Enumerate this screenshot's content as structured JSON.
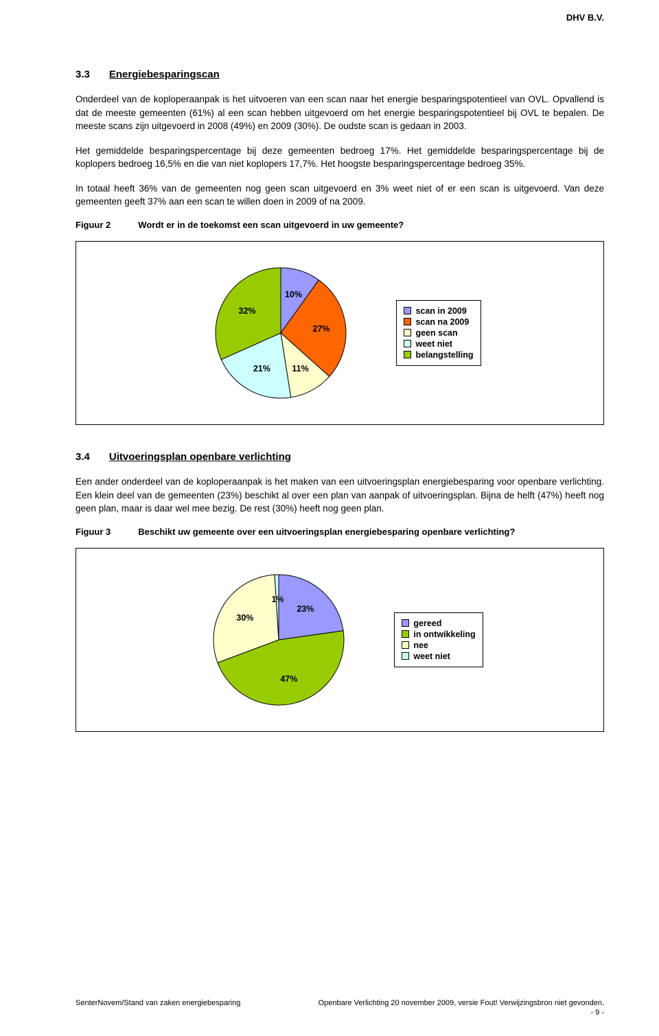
{
  "header": {
    "company": "DHV B.V."
  },
  "section33": {
    "num": "3.3",
    "title": "Energiebesparingscan",
    "p1": "Onderdeel van de koploperaanpak is het uitvoeren van een scan naar het energie besparingspotentieel van OVL. Opvallend is dat de meeste gemeenten (61%) al een scan hebben uitgevoerd om het energie besparingspotentieel bij OVL te bepalen. De meeste scans zijn uitgevoerd in 2008 (49%) en 2009 (30%). De oudste scan is gedaan in 2003.",
    "p2": "Het gemiddelde besparingspercentage bij deze gemeenten bedroeg 17%. Het gemiddelde besparingspercentage bij de koplopers bedroeg 16,5% en die van niet koplopers 17,7%. Het hoogste besparingspercentage bedroeg 35%.",
    "p3": "In totaal heeft 36% van de gemeenten nog geen scan uitgevoerd en 3% weet niet of er een scan is uitgevoerd. Van deze gemeenten geeft 37% aan een scan te willen doen in 2009 of na 2009."
  },
  "figure2": {
    "label": "Figuur 2",
    "caption": "Wordt er in de toekomst een scan uitgevoerd in uw gemeente?",
    "chart": {
      "type": "pie",
      "background_color": "#ffffff",
      "stroke": "#000000",
      "radius": 95,
      "slices": [
        {
          "label": "scan in 2009",
          "value": 10,
          "pct": "10%",
          "color": "#9999ff"
        },
        {
          "label": "scan na 2009",
          "value": 27,
          "pct": "27%",
          "color": "#ff6600"
        },
        {
          "label": "geen scan",
          "value": 11,
          "pct": "11%",
          "color": "#ffffcc"
        },
        {
          "label": "weet niet",
          "value": 21,
          "pct": "21%",
          "color": "#ccffff"
        },
        {
          "label": "belangstelling",
          "value": 32,
          "pct": "32%",
          "color": "#99cc00"
        }
      ],
      "legend": [
        "scan in 2009",
        "scan na 2009",
        "geen scan",
        "weet niet",
        "belangstelling"
      ]
    }
  },
  "section34": {
    "num": "3.4",
    "title": "Uitvoeringsplan openbare verlichting",
    "p1": "Een ander onderdeel van de koploperaanpak is het maken van een uitvoeringsplan energiebesparing voor openbare verlichting. Een klein deel van de gemeenten (23%) beschikt al over een plan van aanpak of uitvoeringsplan. Bijna de helft (47%) heeft nog geen plan, maar is daar wel mee bezig. De rest (30%) heeft nog geen plan."
  },
  "figure3": {
    "label": "Figuur 3",
    "caption": "Beschikt uw gemeente over een uitvoeringsplan energiebesparing openbare verlichting?",
    "chart": {
      "type": "pie",
      "background_color": "#ffffff",
      "stroke": "#000000",
      "radius": 95,
      "slices": [
        {
          "label": "gereed",
          "value": 23,
          "pct": "23%",
          "color": "#9999ff"
        },
        {
          "label": "in ontwikkeling",
          "value": 47,
          "pct": "47%",
          "color": "#99cc00"
        },
        {
          "label": "nee",
          "value": 30,
          "pct": "30%",
          "color": "#ffffcc"
        },
        {
          "label": "weet niet",
          "value": 1,
          "pct": "1%",
          "color": "#ccffff"
        }
      ],
      "legend": [
        "gereed",
        "in ontwikkeling",
        "nee",
        "weet niet"
      ]
    }
  },
  "footer": {
    "left": "SenterNovem/Stand van zaken energiebesparing",
    "right": "Openbare Verlichting 20 november 2009, versie Fout! Verwijzingsbron niet gevonden.",
    "page": "- 9 -"
  }
}
